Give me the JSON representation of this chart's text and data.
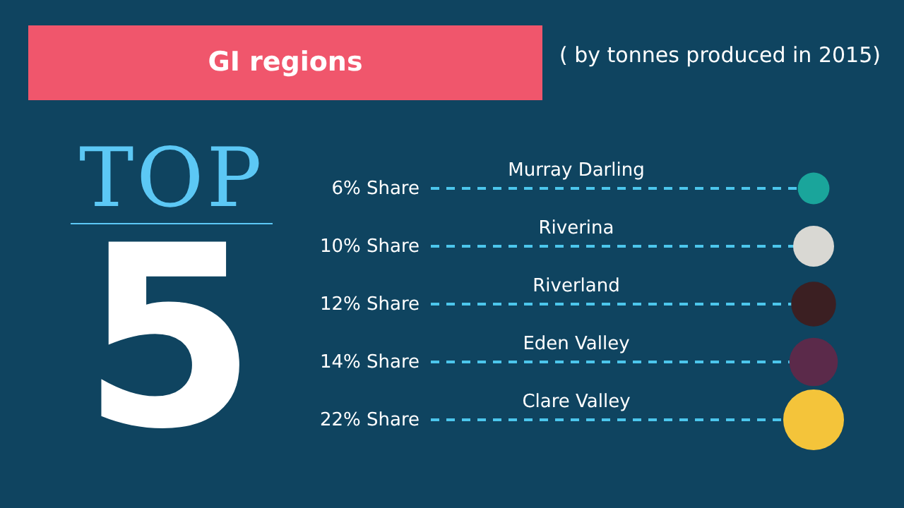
{
  "chart_data": {
    "type": "other",
    "title": "GI regions",
    "subtitle": "( by tonnes produced in 2015)",
    "annotations": [
      "TOP",
      "5"
    ],
    "categories": [
      "Murray Darling",
      "Riverina",
      "Riverland",
      "Eden Valley",
      "Clare Valley"
    ],
    "values": [
      6,
      10,
      12,
      14,
      22
    ],
    "value_labels": [
      "6% Share",
      "10% Share",
      "12% Share",
      "14% Share",
      "22% Share"
    ],
    "colors": [
      "#1aa59b",
      "#d9d8d3",
      "#3b1f22",
      "#5b2a4a",
      "#f4c43a"
    ],
    "color": "#4cc6ec"
  }
}
